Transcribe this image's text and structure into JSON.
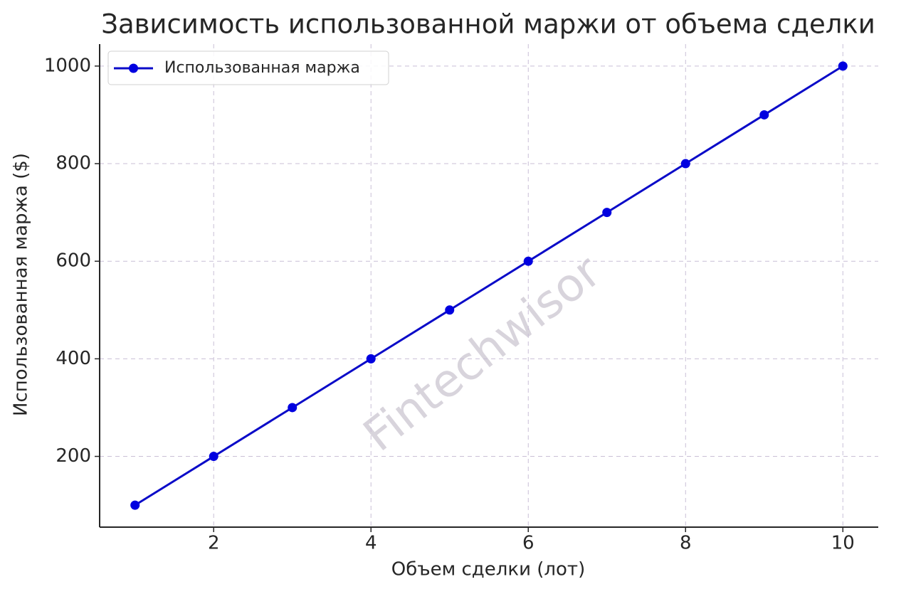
{
  "chart_data": {
    "type": "line",
    "title": "Зависимость использованной маржи от объема сделки",
    "x_label": "Объем сделки (лот)",
    "y_label": "Использованная маржа ($)",
    "watermark": "Fintechwisor",
    "x": [
      1,
      2,
      3,
      4,
      5,
      6,
      7,
      8,
      9,
      10
    ],
    "series": [
      {
        "name": "Использованная маржа",
        "color": "#0a0ac8",
        "marker_color": "#0000e0",
        "values": [
          100,
          200,
          300,
          400,
          500,
          600,
          700,
          800,
          900,
          1000
        ]
      }
    ],
    "xlim": [
      0.55,
      10.45
    ],
    "ylim": [
      55,
      1045
    ],
    "xticks": [
      2,
      4,
      6,
      8,
      10
    ],
    "yticks": [
      200,
      400,
      600,
      800,
      1000
    ],
    "grid": true,
    "legend": "upper left"
  }
}
